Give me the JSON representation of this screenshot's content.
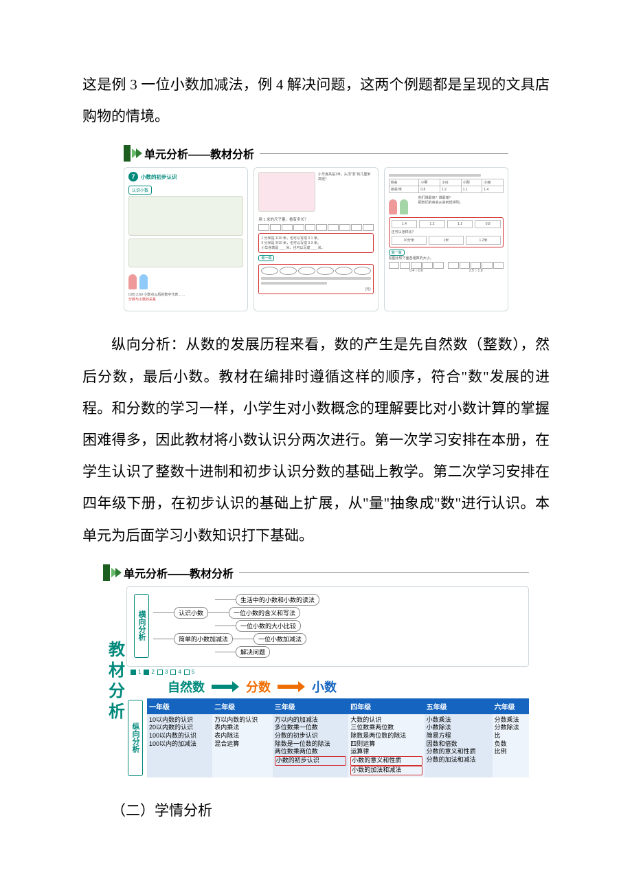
{
  "paragraphs": {
    "p1": "这是例 3 一位小数加减法，例 4 解决问题，这两个例题都是呈现的文具店购物的情境。",
    "p2": "纵向分析：从数的发展历程来看，数的产生是先自然数（整数），然后分数，最后小数。教材在编排时遵循这样的顺序，符合\"数\"发展的进程。和分数的学习一样，小学生对小数概念的理解要比对小数计算的掌握困难得多，因此教材将小数认识分两次进行。第一次学习安排在本册，在学生认识了整数十进制和初步认识分数的基础上教学。第二次学习安排在四年级下册，在初步认识的基础上扩展，从\"量\"抽象成\"数\"进行认识。本单元为后面学习小数知识打下基础。",
    "heading2": "（二）学情分析"
  },
  "colors": {
    "headerGreen": "#2e7d32",
    "headerDarkGreen": "#1b5e20",
    "chevLight": "#66bb6a",
    "chevDark": "#2e7d32",
    "orange": "#ef6c00",
    "teal": "#00897b",
    "blueHeader": "#1565c0",
    "blueCellA": "#dfe9f5",
    "blueCellB": "#eef4fb",
    "red": "#d32f2f",
    "sideLabelColor": "#00897b",
    "kid1": "#ef9a9a",
    "kid2": "#90caf9",
    "kid3": "#a5d6a7"
  },
  "fig1": {
    "headerTitle": "单元分析——教材分析",
    "panel1": {
      "unitNum": "7",
      "unitTitle": "小数的初步认识",
      "sectionTag": "认识小数",
      "bottomNums": "0.85  2.60  小数点以后的数字代表……",
      "bottomNote": "分数与小数的关系"
    },
    "panel2": {
      "caption": "小华身高是1米，头顶\"发\"有几厘米高呢？",
      "subcaption": "用 1 米的尺子量，看有多长？",
      "item1": "1 分米是 1/10 米，也可以写成 0.1 米。",
      "item2": "3 分米是 3/10 米，也可以写成 0.3 米。",
      "item3": "小华身高是 ___ 米，也可以写成 ___ 米。",
      "doTag": "做一做",
      "rulerUnits": "(元)"
    },
    "panel3": {
      "tableHeader": [
        "姓名",
        "小明",
        "小红",
        "小刚",
        "小丽"
      ],
      "tableRow": [
        "身高/米",
        "0.8",
        "1.2",
        "1.1",
        "1.4"
      ],
      "q1": "他们谁最高？谁最矮？",
      "q2": "把他们的身高从高到低排列。",
      "seq": [
        "1.4",
        "1.2",
        "1.1",
        "0.8"
      ],
      "sideNote": "还可以怎样比？",
      "doTag": "做一做",
      "doNote": "看图比较下面各组数的大小。",
      "cmp1": "0.4 ○ 0.8",
      "cmp2": "2.5 ○ 1.8"
    }
  },
  "fig2": {
    "headerTitle": "单元分析——教材分析",
    "sideTitle": "教材分析",
    "topLabel": "横向分析",
    "bottomLabel": "纵向分析",
    "treeRoot1": "认识小数",
    "treeRoot2": "简单的小数加减法",
    "treeLeaves": [
      "生活中的小数和小数的读法",
      "一位小数的含义和写法",
      "一位小数的大小比较",
      "一位小数加减法",
      "解决问题"
    ],
    "checkbox": {
      "num1": "1",
      "num2": "2",
      "num3": "3",
      "num4": "4",
      "num5": "5"
    },
    "midband": {
      "a": "自然数",
      "b": "分数",
      "c": "小数"
    },
    "grades": [
      {
        "name": "一年级",
        "items": [
          "10以内数的认识",
          "20以内数的认识",
          "100以内数的认识",
          "100以内的加减法"
        ],
        "red": []
      },
      {
        "name": "二年级",
        "items": [
          "万以内数的认识",
          "表内乘法",
          "表内除法",
          "混合运算"
        ],
        "red": []
      },
      {
        "name": "三年级",
        "items": [
          "万以内的加减法",
          "多位数乘一位数",
          "分数的初步认识",
          "除数是一位数的除法",
          "两位数乘两位数",
          "小数的初步认识"
        ],
        "red": [
          "小数的初步认识"
        ]
      },
      {
        "name": "四年级",
        "items": [
          "大数的认识",
          "三位数乘两位数",
          "除数是两位数的除法",
          "四则运算",
          "运算律",
          "小数的意义和性质",
          "小数的加法和减法"
        ],
        "red": [
          "小数的意义和性质",
          "小数的加法和减法"
        ]
      },
      {
        "name": "五年级",
        "items": [
          "小数乘法",
          "小数除法",
          "简易方程",
          "因数和倍数",
          "分数的意义和性质",
          "分数的加法和减法"
        ],
        "red": []
      },
      {
        "name": "六年级",
        "items": [
          "分数乘法",
          "分数除法",
          "比",
          "负数",
          "比例"
        ],
        "red": []
      }
    ]
  }
}
